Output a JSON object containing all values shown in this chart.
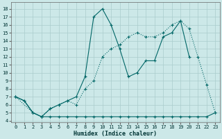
{
  "bg_color": "#cce8e8",
  "grid_color": "#aacccc",
  "line_color": "#006666",
  "xlabel": "Humidex (Indice chaleur)",
  "xlim": [
    -0.5,
    23.5
  ],
  "ylim": [
    3.8,
    18.8
  ],
  "xticks": [
    0,
    1,
    2,
    3,
    4,
    5,
    6,
    7,
    8,
    9,
    10,
    11,
    12,
    13,
    14,
    15,
    16,
    17,
    18,
    19,
    20,
    21,
    22,
    23
  ],
  "yticks": [
    4,
    5,
    6,
    7,
    8,
    9,
    10,
    11,
    12,
    13,
    14,
    15,
    16,
    17,
    18
  ],
  "line1_x": [
    0,
    1,
    2,
    3,
    4,
    5,
    6,
    7,
    8,
    9,
    10,
    11,
    12,
    13,
    14,
    15,
    16,
    17,
    18,
    19,
    20
  ],
  "line1_y": [
    7,
    6.5,
    5,
    4.5,
    5.5,
    6,
    6.5,
    7,
    9.5,
    17,
    18,
    16,
    13,
    9.5,
    10,
    11.5,
    11.5,
    14.5,
    15,
    16.5,
    12
  ],
  "line2_x": [
    0,
    1,
    2,
    3,
    4,
    5,
    6,
    7,
    8,
    9,
    10,
    11,
    12,
    13,
    14,
    15,
    16,
    17,
    18,
    19,
    20,
    21,
    22,
    23
  ],
  "line2_y": [
    7,
    6.5,
    5,
    4.5,
    4.5,
    4.5,
    4.5,
    4.5,
    4.5,
    4.5,
    4.5,
    4.5,
    4.5,
    4.5,
    4.5,
    4.5,
    4.5,
    4.5,
    4.5,
    4.5,
    4.5,
    4.5,
    4.5,
    5
  ],
  "line3_x": [
    0,
    2,
    3,
    4,
    5,
    6,
    7,
    8,
    9,
    10,
    11,
    12,
    13,
    14,
    15,
    16,
    17,
    18,
    19,
    20,
    21,
    22,
    23
  ],
  "line3_y": [
    7,
    5,
    4.5,
    5.5,
    6,
    6.5,
    6,
    8,
    9,
    12,
    13,
    13.5,
    14.5,
    15,
    14.5,
    14.5,
    15,
    16,
    16.5,
    15.5,
    12,
    8.5,
    5
  ]
}
